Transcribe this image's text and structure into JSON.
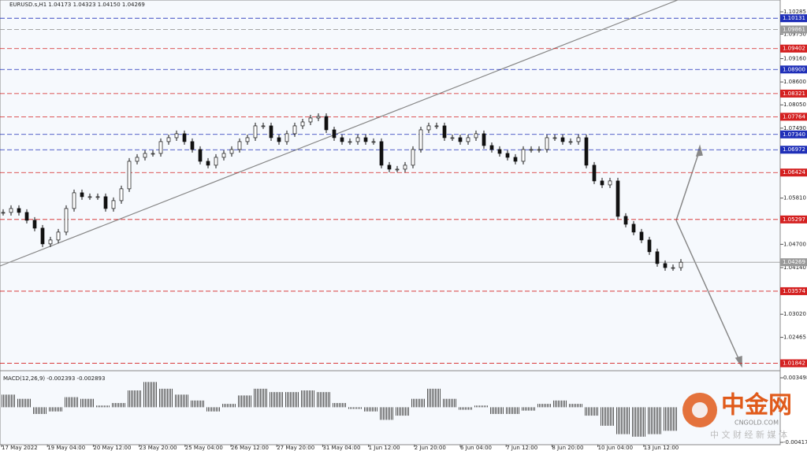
{
  "chart_data": [
    {
      "type": "candle",
      "title": "EURUSD.s,H1  1.04173 1.04323 1.04150 1.04269",
      "values": [
        1.05466,
        1.0556,
        1.05466,
        1.05277,
        1.05088,
        1.0471,
        1.04804,
        1.04993,
        1.0556,
        1.05938,
        1.05844,
        1.05844,
        1.05844,
        1.0556,
        1.05749,
        1.06033,
        1.06694,
        1.06789,
        1.06883,
        1.06883,
        1.07167,
        1.07261,
        1.07356,
        1.07167,
        1.06978,
        1.06694,
        1.066,
        1.06789,
        1.06883,
        1.06978,
        1.07167,
        1.07261,
        1.07545,
        1.07545,
        1.07261,
        1.07167,
        1.07356,
        1.07545,
        1.07639,
        1.07734,
        1.07771,
        1.0745,
        1.07261,
        1.07167,
        1.07167,
        1.07261,
        1.07167,
        1.07167,
        1.066,
        1.06505,
        1.06505,
        1.066,
        1.06978,
        1.0745,
        1.07545,
        1.07545,
        1.07261,
        1.07261,
        1.07167,
        1.07261,
        1.07356,
        1.07072,
        1.06978,
        1.06883,
        1.06789,
        1.06694,
        1.06978,
        1.06978,
        1.06978,
        1.07261,
        1.07261,
        1.07167,
        1.07167,
        1.07261,
        1.066,
        1.06222,
        1.06127,
        1.06222,
        1.05371,
        1.05182,
        1.04993,
        1.04804,
        1.04521,
        1.04237,
        1.0414,
        1.0414,
        1.04269
      ],
      "ylim": [
        1.10569,
        1.01682
      ],
      "yticks": [
        {
          "value": 1.10285,
          "label": "1.10285"
        },
        {
          "value": 1.0975,
          "label": "1.09750"
        },
        {
          "value": 1.0916,
          "label": "1.09160"
        },
        {
          "value": 1.086,
          "label": "1.08600"
        },
        {
          "value": 1.0805,
          "label": "1.08050"
        },
        {
          "value": 1.0749,
          "label": "1.07490"
        },
        {
          "value": 1.0581,
          "label": "1.05810"
        },
        {
          "value": 1.047,
          "label": "1.04700"
        },
        {
          "value": 1.0414,
          "label": "1.04140"
        },
        {
          "value": 1.0302,
          "label": "1.03020"
        },
        {
          "value": 1.02465,
          "label": "1.02465"
        }
      ],
      "levels": [
        {
          "value": 1.10131,
          "color": "#1f2fb8"
        },
        {
          "value": 1.09861,
          "color": "#9a9a9a"
        },
        {
          "value": 1.09402,
          "color": "#d42020"
        },
        {
          "value": 1.089,
          "label": "1.08900",
          "color": "#1f2fb8"
        },
        {
          "value": 1.08321,
          "color": "#d42020"
        },
        {
          "value": 1.07764,
          "color": "#d42020"
        },
        {
          "value": 1.0734,
          "label": "1.07340",
          "color": "#1f2fb8"
        },
        {
          "value": 1.06972,
          "color": "#1f2fb8"
        },
        {
          "value": 1.06424,
          "color": "#d42020"
        },
        {
          "value": 1.05297,
          "color": "#d42020"
        },
        {
          "value": 1.04269,
          "color": "#9a9a9a"
        },
        {
          "value": 1.03574,
          "color": "#d42020"
        },
        {
          "value": 1.01842,
          "color": "#d42020"
        }
      ],
      "xlabels": [
        "17 May 2022",
        "19 May 04:00",
        "20 May 12:00",
        "23 May 20:00",
        "25 May 04:00",
        "26 May 12:00",
        "27 May 20:00",
        "31 May 04:00",
        "1 Jun 12:00",
        "2 Jun 20:00",
        "6 Jun 04:00",
        "7 Jun 12:00",
        "8 Jun 20:00",
        "10 Jun 04:00",
        "13 Jun 12:00"
      ],
      "watermark": "中金网",
      "watermark_url": "CNGOLD.COM",
      "watermark_sub": "中 文 财 经 新 媒 体"
    },
    {
      "type": "macd",
      "title": "MACD(12,26,9) -0.002393 -0.002893",
      "values": [
        0.0015,
        0.001,
        -0.0008,
        -0.0005,
        0.0012,
        0.001,
        0.0002,
        0.0005,
        0.002,
        0.003,
        0.0022,
        0.0015,
        0.0008,
        -0.0005,
        0.0004,
        0.0014,
        0.0022,
        0.0018,
        0.0018,
        0.002,
        0.0018,
        0.0005,
        -0.0002,
        -0.0005,
        -0.0015,
        -0.001,
        0.001,
        0.0022,
        0.001,
        -0.0003,
        0.0002,
        -0.0008,
        -0.0008,
        -0.0004,
        0.0004,
        0.0008,
        0.0004,
        -0.001,
        -0.0022,
        -0.0032,
        -0.0035,
        -0.0032,
        -0.0028
      ],
      "ylim": [
        0.003498,
        -0.004173
      ],
      "yticks": [
        0.003498,
        -0.004173
      ]
    }
  ]
}
